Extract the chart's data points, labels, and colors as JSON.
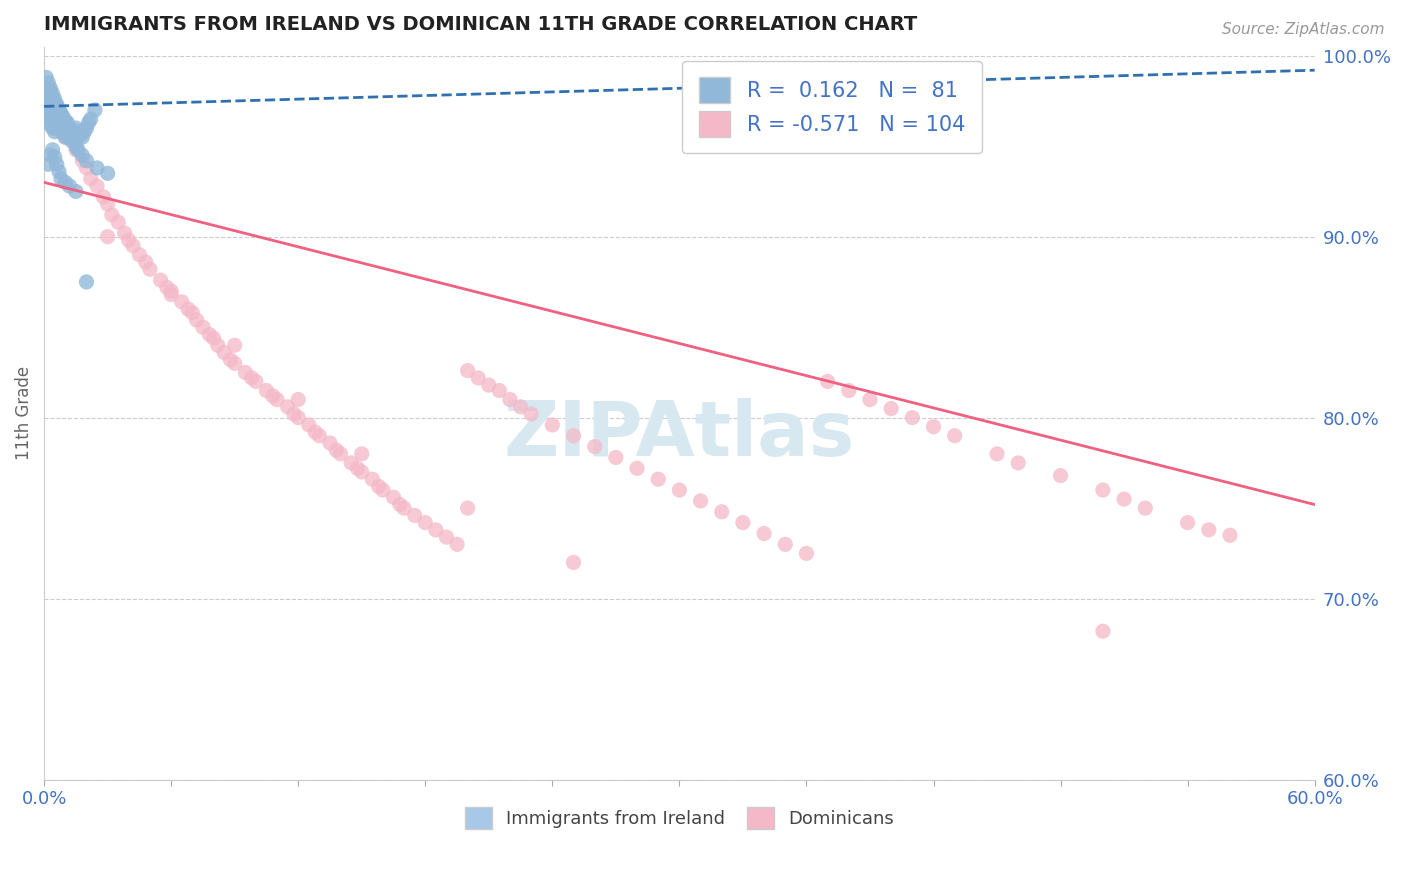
{
  "title": "IMMIGRANTS FROM IRELAND VS DOMINICAN 11TH GRADE CORRELATION CHART",
  "source_text": "Source: ZipAtlas.com",
  "ylabel": "11th Grade",
  "xlim": [
    0.0,
    0.6
  ],
  "ylim": [
    0.6,
    1.005
  ],
  "xticks": [
    0.0,
    0.06,
    0.12,
    0.18,
    0.24,
    0.3,
    0.36,
    0.42,
    0.48,
    0.54,
    0.6
  ],
  "yticks_right": [
    0.6,
    0.7,
    0.8,
    0.9,
    1.0
  ],
  "ytick_right_labels": [
    "60.0%",
    "70.0%",
    "80.0%",
    "90.0%",
    "100.0%"
  ],
  "ireland_R": 0.162,
  "ireland_N": 81,
  "dominican_R": -0.571,
  "dominican_N": 104,
  "ireland_color": "#91b8d9",
  "dominican_color": "#f4b8c8",
  "ireland_line_color": "#3070b0",
  "dominican_line_color": "#f06080",
  "watermark": "ZIPAtlas",
  "legend_ireland_label": "Immigrants from Ireland",
  "legend_dominican_label": "Dominicans",
  "ireland_scatter_x": [
    0.001,
    0.001,
    0.001,
    0.002,
    0.002,
    0.002,
    0.002,
    0.003,
    0.003,
    0.003,
    0.003,
    0.004,
    0.004,
    0.004,
    0.004,
    0.005,
    0.005,
    0.005,
    0.005,
    0.006,
    0.006,
    0.006,
    0.007,
    0.007,
    0.007,
    0.008,
    0.008,
    0.008,
    0.009,
    0.009,
    0.01,
    0.01,
    0.01,
    0.011,
    0.011,
    0.012,
    0.012,
    0.013,
    0.013,
    0.014,
    0.015,
    0.015,
    0.016,
    0.017,
    0.018,
    0.019,
    0.02,
    0.021,
    0.022,
    0.024,
    0.001,
    0.002,
    0.003,
    0.004,
    0.005,
    0.006,
    0.007,
    0.008,
    0.009,
    0.01,
    0.011,
    0.012,
    0.013,
    0.014,
    0.015,
    0.016,
    0.018,
    0.02,
    0.025,
    0.03,
    0.002,
    0.003,
    0.004,
    0.005,
    0.006,
    0.007,
    0.008,
    0.01,
    0.012,
    0.015,
    0.02
  ],
  "ireland_scatter_y": [
    0.978,
    0.972,
    0.968,
    0.982,
    0.975,
    0.97,
    0.965,
    0.98,
    0.974,
    0.968,
    0.962,
    0.976,
    0.972,
    0.966,
    0.96,
    0.974,
    0.97,
    0.964,
    0.958,
    0.972,
    0.968,
    0.962,
    0.97,
    0.965,
    0.96,
    0.968,
    0.963,
    0.958,
    0.966,
    0.961,
    0.964,
    0.96,
    0.955,
    0.963,
    0.958,
    0.96,
    0.955,
    0.958,
    0.953,
    0.956,
    0.96,
    0.955,
    0.958,
    0.956,
    0.955,
    0.958,
    0.96,
    0.963,
    0.965,
    0.97,
    0.988,
    0.985,
    0.982,
    0.979,
    0.976,
    0.973,
    0.97,
    0.968,
    0.965,
    0.963,
    0.96,
    0.958,
    0.955,
    0.953,
    0.95,
    0.948,
    0.945,
    0.942,
    0.938,
    0.935,
    0.94,
    0.945,
    0.948,
    0.944,
    0.94,
    0.936,
    0.932,
    0.93,
    0.928,
    0.925,
    0.875
  ],
  "dominican_scatter_x": [
    0.005,
    0.01,
    0.015,
    0.018,
    0.02,
    0.022,
    0.025,
    0.028,
    0.03,
    0.032,
    0.035,
    0.038,
    0.04,
    0.042,
    0.045,
    0.048,
    0.05,
    0.055,
    0.058,
    0.06,
    0.065,
    0.068,
    0.07,
    0.072,
    0.075,
    0.078,
    0.08,
    0.082,
    0.085,
    0.088,
    0.09,
    0.095,
    0.098,
    0.1,
    0.105,
    0.108,
    0.11,
    0.115,
    0.118,
    0.12,
    0.125,
    0.128,
    0.13,
    0.135,
    0.138,
    0.14,
    0.145,
    0.148,
    0.15,
    0.155,
    0.158,
    0.16,
    0.165,
    0.168,
    0.17,
    0.175,
    0.18,
    0.185,
    0.19,
    0.195,
    0.2,
    0.205,
    0.21,
    0.215,
    0.22,
    0.225,
    0.23,
    0.24,
    0.25,
    0.26,
    0.27,
    0.28,
    0.29,
    0.3,
    0.31,
    0.32,
    0.33,
    0.34,
    0.35,
    0.36,
    0.37,
    0.38,
    0.39,
    0.4,
    0.41,
    0.42,
    0.43,
    0.45,
    0.46,
    0.48,
    0.5,
    0.51,
    0.52,
    0.54,
    0.55,
    0.56,
    0.03,
    0.06,
    0.09,
    0.12,
    0.15,
    0.2,
    0.25,
    0.5
  ],
  "dominican_scatter_y": [
    0.96,
    0.955,
    0.948,
    0.942,
    0.938,
    0.932,
    0.928,
    0.922,
    0.918,
    0.912,
    0.908,
    0.902,
    0.898,
    0.895,
    0.89,
    0.886,
    0.882,
    0.876,
    0.872,
    0.868,
    0.864,
    0.86,
    0.858,
    0.854,
    0.85,
    0.846,
    0.844,
    0.84,
    0.836,
    0.832,
    0.83,
    0.825,
    0.822,
    0.82,
    0.815,
    0.812,
    0.81,
    0.806,
    0.802,
    0.8,
    0.796,
    0.792,
    0.79,
    0.786,
    0.782,
    0.78,
    0.775,
    0.772,
    0.77,
    0.766,
    0.762,
    0.76,
    0.756,
    0.752,
    0.75,
    0.746,
    0.742,
    0.738,
    0.734,
    0.73,
    0.826,
    0.822,
    0.818,
    0.815,
    0.81,
    0.806,
    0.802,
    0.796,
    0.79,
    0.784,
    0.778,
    0.772,
    0.766,
    0.76,
    0.754,
    0.748,
    0.742,
    0.736,
    0.73,
    0.725,
    0.82,
    0.815,
    0.81,
    0.805,
    0.8,
    0.795,
    0.79,
    0.78,
    0.775,
    0.768,
    0.76,
    0.755,
    0.75,
    0.742,
    0.738,
    0.735,
    0.9,
    0.87,
    0.84,
    0.81,
    0.78,
    0.75,
    0.72,
    0.682
  ]
}
